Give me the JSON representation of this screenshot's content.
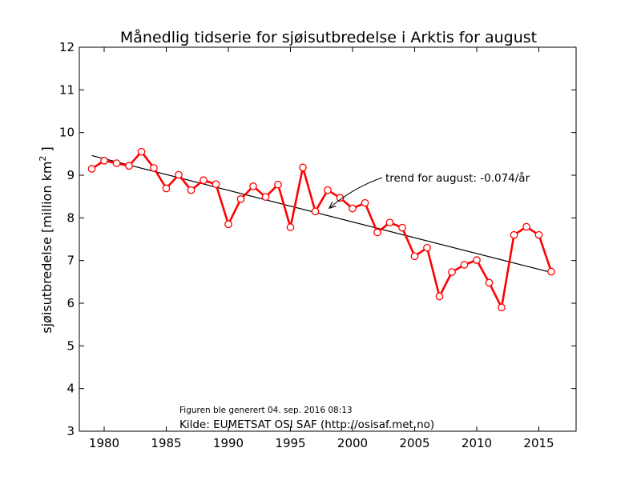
{
  "chart_data": {
    "type": "line",
    "title": "Månedlig tidserie for sjøisutbredelse i Arktis for august",
    "ylabel": "sjøisutbredelse [million km",
    "ylabel_sup": "2",
    "ylabel_end": " ]",
    "xlabel": "",
    "xlim": [
      1978,
      2018
    ],
    "ylim": [
      3,
      12
    ],
    "xticks": [
      1980,
      1985,
      1990,
      1995,
      2000,
      2005,
      2010,
      2015
    ],
    "yticks": [
      3,
      4,
      5,
      6,
      7,
      8,
      9,
      10,
      11,
      12
    ],
    "grid": false,
    "series": [
      {
        "color": "#ff0000",
        "x": [
          1979,
          1980,
          1981,
          1982,
          1983,
          1984,
          1985,
          1986,
          1987,
          1988,
          1989,
          1990,
          1991,
          1992,
          1993,
          1994,
          1995,
          1996,
          1997,
          1998,
          1999,
          2000,
          2001,
          2002,
          2003,
          2004,
          2005,
          2006,
          2007,
          2008,
          2009,
          2010,
          2011,
          2012,
          2013,
          2014,
          2015,
          2016
        ],
        "y": [
          9.15,
          9.34,
          9.28,
          9.22,
          9.55,
          9.17,
          8.69,
          9.01,
          8.65,
          8.88,
          8.79,
          7.85,
          8.44,
          8.74,
          8.49,
          8.78,
          7.78,
          9.18,
          8.15,
          8.65,
          8.47,
          8.22,
          8.35,
          7.66,
          7.89,
          7.77,
          7.1,
          7.3,
          6.16,
          6.73,
          6.9,
          7.01,
          6.48,
          5.9,
          7.6,
          7.79,
          7.6,
          6.74
        ]
      }
    ],
    "trend": {
      "color": "#000000",
      "x": [
        1979,
        2016
      ],
      "y": [
        9.46,
        6.72
      ]
    },
    "annotation": {
      "text": "trend for august: -0.074/år",
      "arrow_to": [
        1998,
        8.15
      ]
    },
    "footer": {
      "generated": "Figuren ble generert 04. sep. 2016 08:13",
      "source": "Kilde: EUMETSAT OSI SAF (http://osisaf.met.no)"
    }
  }
}
